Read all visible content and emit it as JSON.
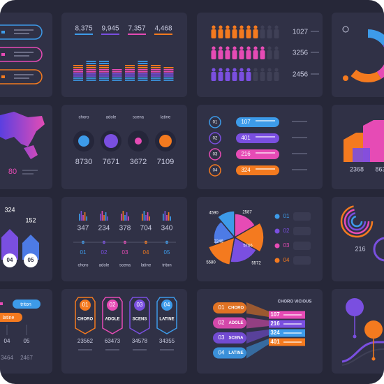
{
  "stats_bars": {
    "numbers": [
      "8,375",
      "9,945",
      "7,357",
      "4,468"
    ]
  },
  "people": {
    "counts": [
      "1027",
      "3256",
      "2456"
    ]
  },
  "map": {
    "value": "80"
  },
  "circles": {
    "names": [
      "choro",
      "adole",
      "scena",
      "latine"
    ],
    "values": [
      "8730",
      "7671",
      "3672",
      "7109"
    ]
  },
  "steps": {
    "numbers": [
      "01",
      "02",
      "03",
      "04"
    ],
    "values": [
      "107",
      "401",
      "216",
      "324"
    ]
  },
  "stairs": {
    "values": [
      "2368",
      "863"
    ]
  },
  "arrows": {
    "values": [
      "324",
      "152"
    ],
    "numbers": [
      "04",
      "05"
    ]
  },
  "mini_bars": {
    "values": [
      "347",
      "234",
      "378",
      "704",
      "340"
    ],
    "numbers": [
      "01",
      "02",
      "03",
      "04",
      "05"
    ],
    "names": [
      "choro",
      "adole",
      "scena",
      "latine",
      "triton"
    ]
  },
  "pie": {
    "labels": [
      "4590",
      "2587",
      "2246",
      "5766",
      "5580",
      "5572"
    ],
    "legend": [
      "01",
      "02",
      "03",
      "04"
    ]
  },
  "rings": {
    "value": "216"
  },
  "pills": {
    "names": [
      "triton",
      "latine"
    ],
    "numbers": [
      "04",
      "05"
    ],
    "values": [
      "3464",
      "2467"
    ]
  },
  "badges": {
    "numbers": [
      "01",
      "02",
      "03",
      "04"
    ],
    "names": [
      "CHORO",
      "ADOLE",
      "SCENS",
      "LATINE"
    ],
    "values": [
      "23562",
      "63473",
      "34578",
      "34355"
    ]
  },
  "funnel": {
    "title": "CHORO VICIOUS",
    "numbers": [
      "01",
      "02",
      "03",
      "04"
    ],
    "names": [
      "CHORO",
      "ADOLE",
      "SCENA",
      "LATINE"
    ],
    "values": [
      "107",
      "216",
      "324",
      "401"
    ]
  }
}
